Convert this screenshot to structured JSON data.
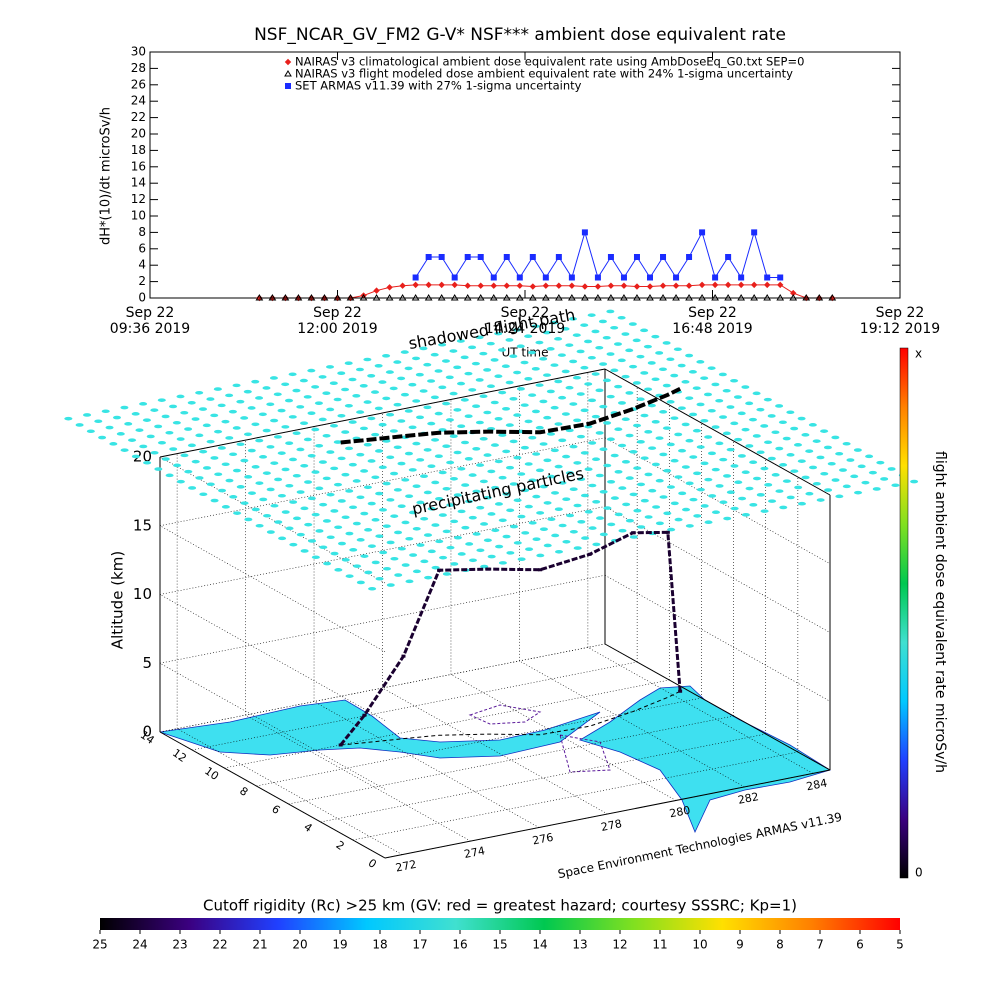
{
  "chart_data": [
    {
      "type": "line",
      "title": "NSF_NCAR_GV_FM2 G-V* NSF*** ambient dose equivalent rate",
      "y_label": "dH*(10)/dt microSv/h",
      "x_label": "UT time",
      "xlim": [
        "2019-09-22T09:36",
        "2019-09-22T19:12"
      ],
      "xticks": [
        {
          "value": "2019-09-22T09:36",
          "label": [
            "Sep 22",
            "09:36 2019"
          ]
        },
        {
          "value": "2019-09-22T12:00",
          "label": [
            "Sep 22",
            "12:00 2019"
          ]
        },
        {
          "value": "2019-09-22T14:24",
          "label": [
            "Sep 22",
            "14:24 2019"
          ]
        },
        {
          "value": "2019-09-22T16:48",
          "label": [
            "Sep 22",
            "16:48 2019"
          ]
        },
        {
          "value": "2019-09-22T19:12",
          "label": [
            "Sep 22",
            "19:12 2019"
          ]
        }
      ],
      "ylim": [
        0,
        30
      ],
      "yticks": [
        0,
        2,
        4,
        6,
        8,
        10,
        12,
        14,
        16,
        18,
        20,
        22,
        24,
        26,
        28,
        30
      ],
      "x": [
        "2019-09-22T11:00",
        "2019-09-22T11:10",
        "2019-09-22T11:20",
        "2019-09-22T11:30",
        "2019-09-22T11:40",
        "2019-09-22T11:50",
        "2019-09-22T12:00",
        "2019-09-22T12:10",
        "2019-09-22T12:20",
        "2019-09-22T12:30",
        "2019-09-22T12:40",
        "2019-09-22T12:50",
        "2019-09-22T13:00",
        "2019-09-22T13:10",
        "2019-09-22T13:20",
        "2019-09-22T13:30",
        "2019-09-22T13:40",
        "2019-09-22T13:50",
        "2019-09-22T14:00",
        "2019-09-22T14:10",
        "2019-09-22T14:20",
        "2019-09-22T14:30",
        "2019-09-22T14:40",
        "2019-09-22T14:50",
        "2019-09-22T15:00",
        "2019-09-22T15:10",
        "2019-09-22T15:20",
        "2019-09-22T15:30",
        "2019-09-22T15:40",
        "2019-09-22T15:50",
        "2019-09-22T16:00",
        "2019-09-22T16:10",
        "2019-09-22T16:20",
        "2019-09-22T16:30",
        "2019-09-22T16:40",
        "2019-09-22T16:50",
        "2019-09-22T17:00",
        "2019-09-22T17:10",
        "2019-09-22T17:20",
        "2019-09-22T17:30",
        "2019-09-22T17:40",
        "2019-09-22T17:50",
        "2019-09-22T18:00",
        "2019-09-22T18:10",
        "2019-09-22T18:20"
      ],
      "series": [
        {
          "name": "NAIRAS v3 climatological ambient dose equivalent rate using AmbDoseEq_G0.txt SEP=0",
          "color": "#e8201c",
          "marker": "diamond",
          "values": [
            0,
            0,
            0,
            0,
            0,
            0,
            0,
            0,
            0.3,
            0.9,
            1.3,
            1.5,
            1.6,
            1.6,
            1.6,
            1.6,
            1.5,
            1.5,
            1.5,
            1.5,
            1.5,
            1.4,
            1.5,
            1.5,
            1.5,
            1.4,
            1.4,
            1.5,
            1.5,
            1.4,
            1.4,
            1.5,
            1.5,
            1.5,
            1.6,
            1.6,
            1.6,
            1.6,
            1.6,
            1.6,
            1.6,
            0.6,
            0,
            0,
            0
          ]
        },
        {
          "name": "NAIRAS v3 flight modeled dose ambient equivalent rate with 24% 1-sigma uncertainty",
          "color": "#000000",
          "marker": "triangle",
          "values": [
            0,
            0,
            0,
            0,
            0,
            0,
            0,
            0,
            0,
            0,
            0,
            0,
            0,
            0,
            0,
            0,
            0,
            0,
            0,
            0,
            0,
            0,
            0,
            0,
            0,
            0,
            0,
            0,
            0,
            0,
            0,
            0,
            0,
            0,
            0,
            0,
            0,
            0,
            0,
            0,
            0,
            0,
            0,
            0,
            0
          ]
        },
        {
          "name": "SET ARMAS v11.39 with 27% 1-sigma uncertainty",
          "color": "#1a2cff",
          "marker": "square",
          "values": [
            null,
            null,
            null,
            null,
            null,
            null,
            null,
            null,
            null,
            null,
            null,
            null,
            2.5,
            5,
            5,
            2.5,
            5,
            5,
            2.5,
            5,
            2.5,
            5,
            2.5,
            5,
            2.5,
            8,
            2.5,
            5,
            2.5,
            5,
            2.5,
            5,
            2.5,
            5,
            8,
            2.5,
            5,
            2.5,
            8,
            2.5,
            2.5,
            null,
            null,
            null,
            null
          ]
        }
      ]
    },
    {
      "type": "track3d",
      "z_label": "Altitude (km)",
      "zlim": [
        0,
        20
      ],
      "zticks": [
        0,
        5,
        10,
        15,
        20
      ],
      "ylim": [
        0,
        14
      ],
      "yticks": [
        14,
        12,
        10,
        8,
        6,
        4,
        2,
        0
      ],
      "xlim": [
        271.5,
        284.5
      ],
      "xticks": [
        272,
        274,
        276,
        278,
        280,
        282,
        284
      ],
      "annotations": [
        "shadowed flight path",
        "precipitating particles",
        "Space Environment Technologies ARMAS v11.39"
      ],
      "flight": {
        "color": "#1a0030",
        "x": [
          274.9,
          275.5,
          276.5,
          277.4,
          278.5,
          279.6,
          281,
          282.5,
          283.8,
          284.3
        ],
        "y": [
          10,
          9.8,
          9.5,
          9.2,
          8.5,
          7.6,
          7.5,
          8,
          8.6,
          8.9
        ],
        "z": [
          0,
          2,
          6,
          12,
          12,
          12,
          12.5,
          13,
          12,
          0
        ]
      },
      "dose_colorbar": {
        "label": "flight ambient dose equivalent rate microSv/h",
        "top_label": "x",
        "bottom_label": "0",
        "colors": [
          "#000000",
          "#3b0080",
          "#2040ff",
          "#00c8ff",
          "#40e0d0",
          "#00c850",
          "#80e020",
          "#ffe000",
          "#ff8000",
          "#ff0000"
        ]
      },
      "rigidity_colorbar": {
        "title": "Cutoff rigidity (Rc) >25 km (GV: red = greatest hazard; courtesy SSSRC; Kp=1)",
        "lim": [
          25,
          5
        ],
        "ticks": [
          25,
          24,
          23,
          22,
          21,
          20,
          19,
          18,
          17,
          16,
          15,
          14,
          13,
          12,
          11,
          10,
          9,
          8,
          7,
          6,
          5
        ],
        "colors": [
          "#000000",
          "#3b0080",
          "#2040ff",
          "#00c8ff",
          "#40e0d0",
          "#00c850",
          "#80e020",
          "#ffe000",
          "#ff8000",
          "#ff0000"
        ]
      }
    }
  ]
}
